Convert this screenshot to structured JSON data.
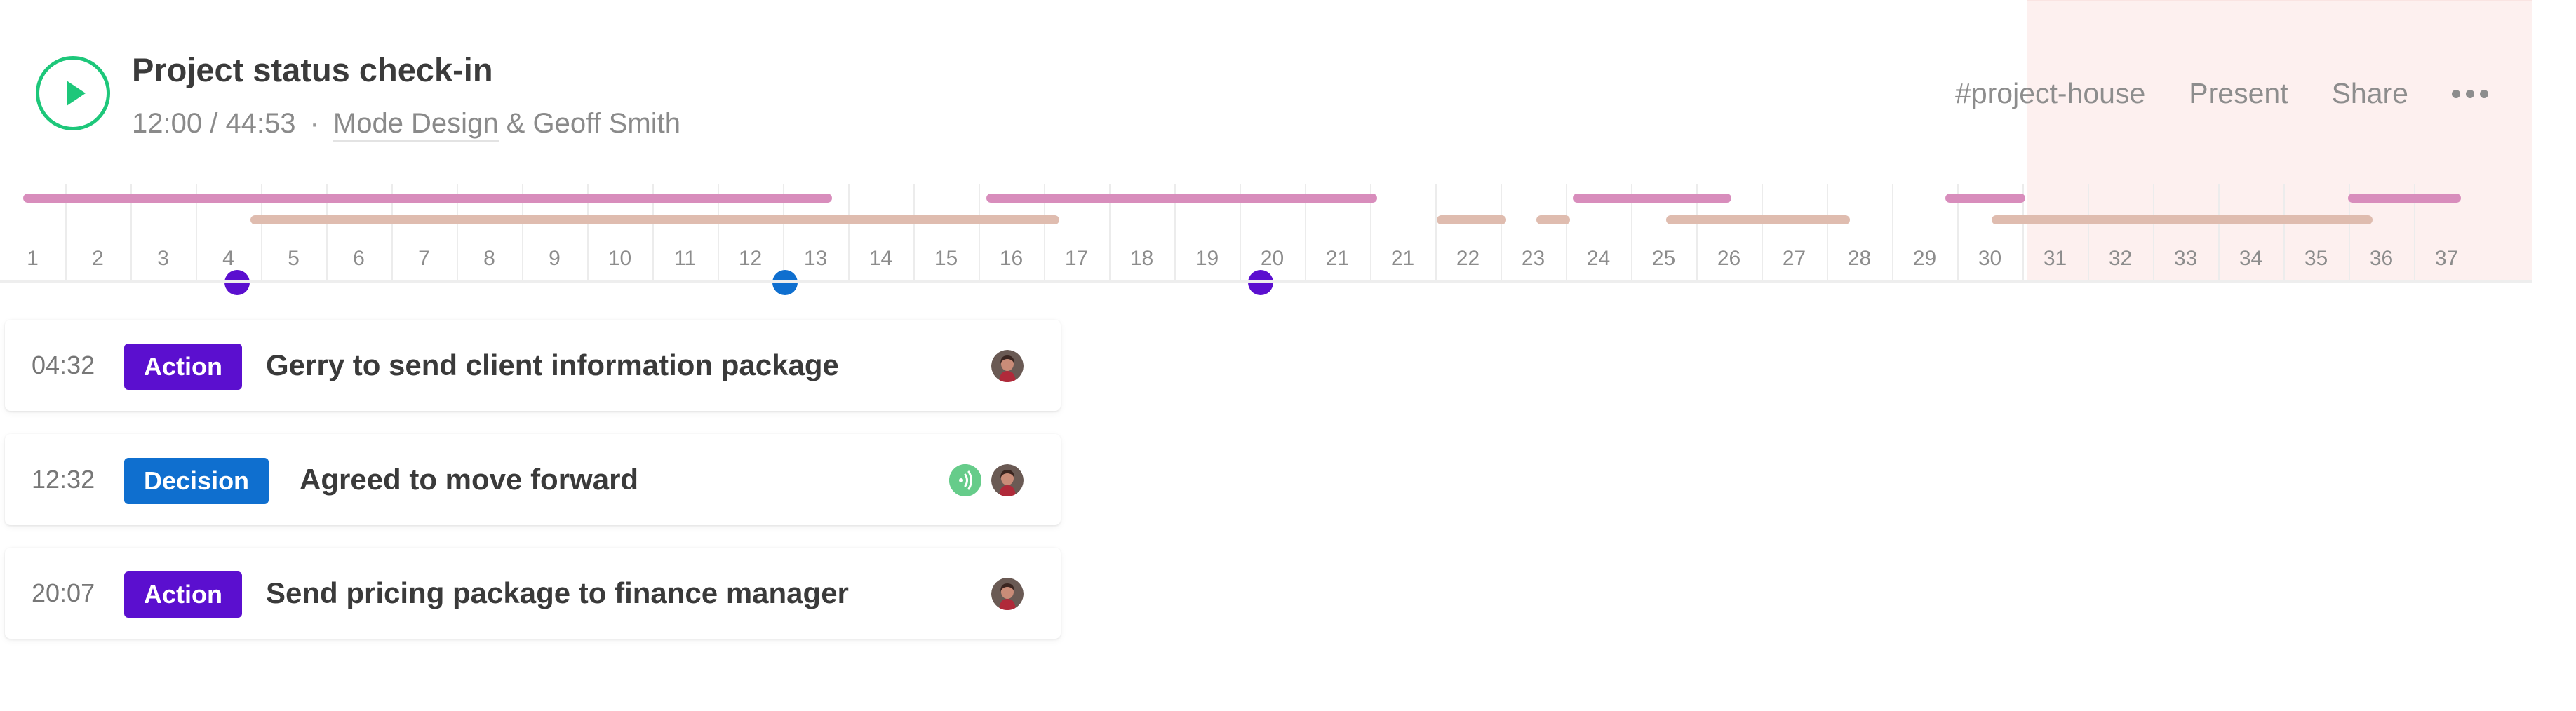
{
  "header": {
    "title": "Project status check-in",
    "time": "12:00 / 44:53",
    "separator": "·",
    "participants_link": "Mode Design",
    "participants_rest": " & Geoff Smith",
    "actions": {
      "channel": "#project-house",
      "present": "Present",
      "share": "Share"
    }
  },
  "timeline": {
    "labels": [
      "1",
      "2",
      "3",
      "4",
      "5",
      "6",
      "7",
      "8",
      "9",
      "10",
      "11",
      "12",
      "13",
      "14",
      "15",
      "16",
      "17",
      "18",
      "19",
      "20",
      "21",
      "21",
      "22",
      "23",
      "24",
      "25",
      "26",
      "27",
      "28",
      "29",
      "30",
      "31",
      "32",
      "33",
      "34",
      "35",
      "36",
      "37"
    ]
  },
  "colors": {
    "accent": "#1dc77a",
    "action": "#5b0fcf",
    "decision": "#0f6fcf",
    "speaker_a": "#d88dbc",
    "speaker_b": "#dfbcaf",
    "highlight": "#fdf0ef"
  },
  "items": [
    {
      "time": "04:32",
      "type": "Action",
      "text": "Gerry to send client information package",
      "audio": false
    },
    {
      "time": "12:32",
      "type": "Decision",
      "text": "Agreed to move forward",
      "audio": true
    },
    {
      "time": "20:07",
      "type": "Action",
      "text": "Send pricing package to finance manager",
      "audio": false
    }
  ],
  "icons": {
    "play": "play-icon",
    "more": "more-horizontal-icon",
    "audio": "audio-wave-icon",
    "avatar": "user-avatar"
  }
}
